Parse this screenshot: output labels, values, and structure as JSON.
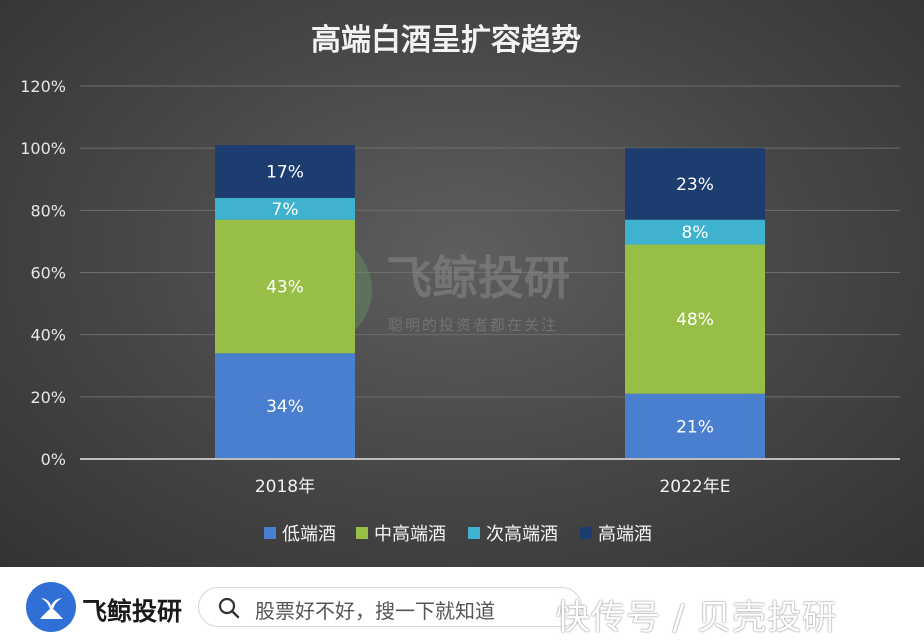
{
  "colors": {
    "low": "#4a7fd0",
    "mid": "#97be47",
    "midhigh": "#3fb2cf",
    "high": "#1d3d70"
  },
  "chart_data": {
    "type": "bar",
    "stacked": true,
    "title": "高端白酒呈扩容趋势",
    "categories": [
      "2018年",
      "2022年E"
    ],
    "series": [
      {
        "name": "低端酒",
        "values": [
          34,
          21
        ],
        "labels": [
          "34%",
          "21%"
        ]
      },
      {
        "name": "中高端酒",
        "values": [
          43,
          48
        ],
        "labels": [
          "43%",
          "48%"
        ]
      },
      {
        "name": "次高端酒",
        "values": [
          7,
          8
        ],
        "labels": [
          "7%",
          "8%"
        ]
      },
      {
        "name": "高端酒",
        "values": [
          17,
          23
        ],
        "labels": [
          "17%",
          "23%"
        ]
      }
    ],
    "yticks": [
      "0%",
      "20%",
      "40%",
      "60%",
      "80%",
      "100%",
      "120%"
    ],
    "ylim": [
      0,
      120
    ],
    "grid": true,
    "legend_position": "bottom"
  },
  "watermark": {
    "title": "飞鲸投研",
    "subtitle": "聪明的投资者都在关注"
  },
  "footer": {
    "brand": "飞鲸投研",
    "logo_icon": "whale-tail-icon",
    "search_icon": "search-icon",
    "search_placeholder": "股票好不好，搜一下就知道",
    "source_watermark": "快传号 / 贝壳投研"
  }
}
